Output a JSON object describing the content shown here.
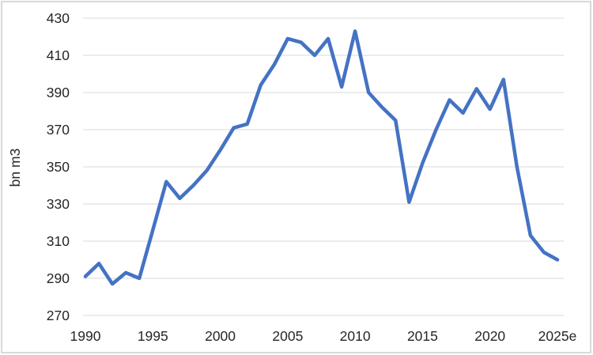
{
  "chart_data": {
    "type": "line",
    "title": "",
    "ylabel": "bn m3",
    "categories": [
      "1990",
      "1991",
      "1992",
      "1993",
      "1994",
      "1995",
      "1996",
      "1997",
      "1998",
      "1999",
      "2000",
      "2001",
      "2002",
      "2003",
      "2004",
      "2005",
      "2006",
      "2007",
      "2008",
      "2009",
      "2010",
      "2011",
      "2012",
      "2013",
      "2014",
      "2015",
      "2016",
      "2017",
      "2018",
      "2019",
      "2020",
      "2021",
      "2022",
      "2023",
      "2024",
      "2025e"
    ],
    "values": [
      291,
      298,
      287,
      293,
      290,
      316,
      342,
      333,
      340,
      348,
      359,
      371,
      373,
      394,
      405,
      419,
      417,
      410,
      419,
      393,
      423,
      390,
      382,
      375,
      331,
      352,
      370,
      386,
      379,
      392,
      381,
      397,
      350,
      313,
      304,
      300
    ],
    "ylim": [
      270,
      430
    ],
    "ytick_step": 20,
    "ytick_labels": [
      "270",
      "290",
      "310",
      "330",
      "350",
      "370",
      "390",
      "410",
      "430"
    ],
    "xtick_labels": [
      "1990",
      "1995",
      "2000",
      "2005",
      "2010",
      "2015",
      "2020",
      "2025e"
    ],
    "xtick_indices": [
      0,
      5,
      10,
      15,
      20,
      25,
      30,
      35
    ],
    "grid": "horizontal",
    "legend_position": "none",
    "colors": {
      "line": "#4472C4",
      "grid": "#D9D9D9",
      "text": "#262626",
      "frame_border": "#D9D9D9",
      "background": "#FFFFFF"
    }
  }
}
